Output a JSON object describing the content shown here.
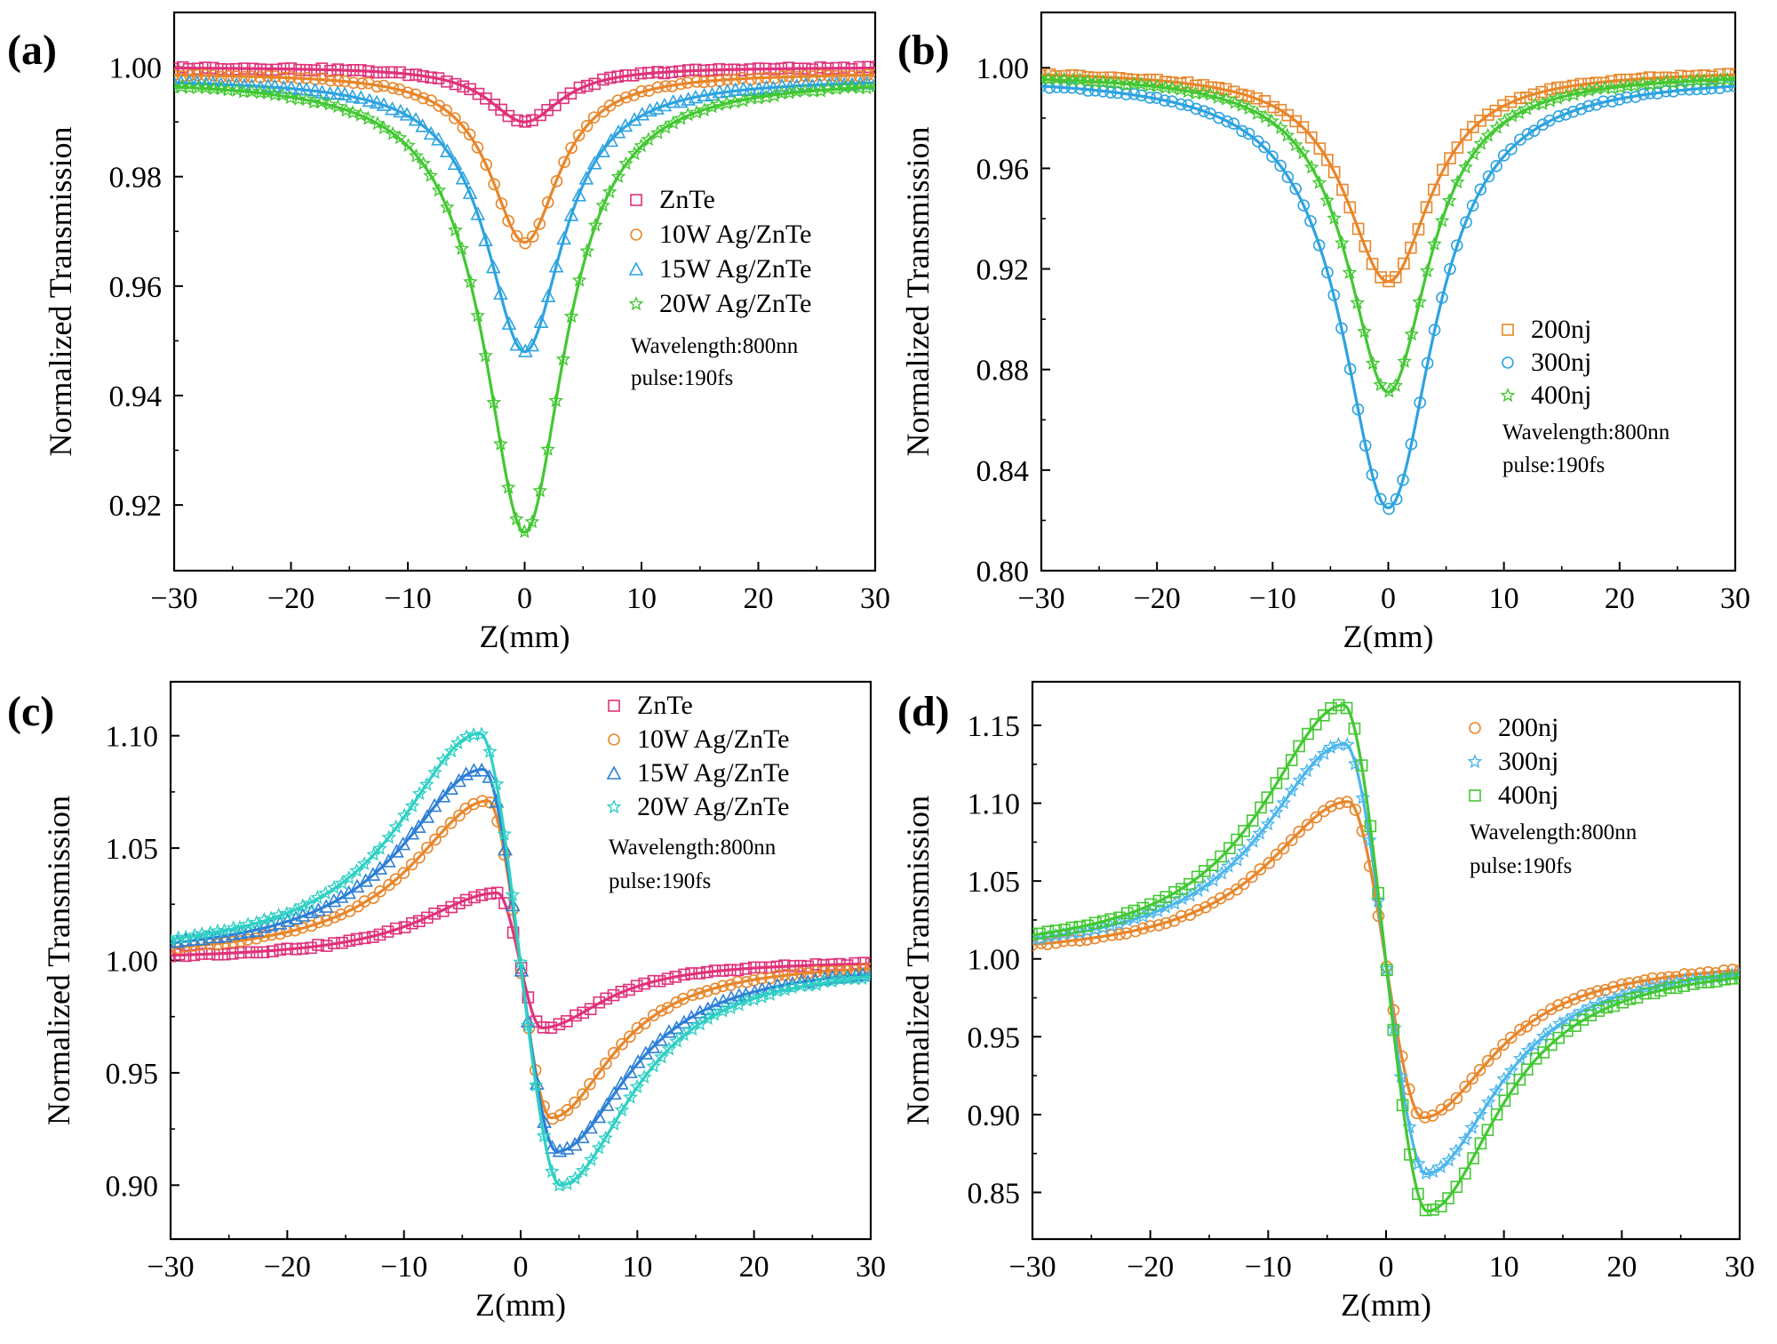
{
  "figure": {
    "panels": [
      {
        "letter": "(a)",
        "xlabel": "Z(mm)",
        "ylabel": "Normalized Transmission",
        "notes": [
          "Wavelength:800nn",
          "pulse:190fs"
        ]
      },
      {
        "letter": "(b)",
        "xlabel": "Z(mm)",
        "ylabel": "Normalized Transmission",
        "notes": [
          "Wavelength:800nn",
          "pulse:190fs"
        ]
      },
      {
        "letter": "(c)",
        "xlabel": "Z(mm)",
        "ylabel": "Normalized Transmission",
        "notes": [
          "Wavelength:800nn",
          "pulse:190fs"
        ]
      },
      {
        "letter": "(d)",
        "xlabel": "Z(mm)",
        "ylabel": "Normalized Transmission",
        "notes": [
          "Wavelength:800nn",
          "pulse:190fs"
        ]
      }
    ]
  },
  "chart_data": [
    {
      "panel": "(a)",
      "type": "line",
      "mode": "valley",
      "title": "",
      "xlabel": "Z(mm)",
      "ylabel": "Normalized Transmission",
      "xlim": [
        -30,
        30
      ],
      "ylim": [
        0.908,
        1.01
      ],
      "xticks": [
        "−30",
        "−20",
        "−10",
        "0",
        "10",
        "20",
        "30"
      ],
      "yticks": [
        0.92,
        0.94,
        0.96,
        0.98,
        1.0
      ],
      "ytick_labels": [
        "0.92",
        "0.94",
        "0.96",
        "0.98",
        "1.00"
      ],
      "legend": "right-center",
      "series": [
        {
          "name": "ZnTe",
          "color": "#e0317a",
          "marker": "square",
          "valley": 0.99,
          "width_mm": 3.8,
          "baseline": 1.0
        },
        {
          "name": "10W Ag/ZnTe",
          "color": "#e8862a",
          "marker": "circle",
          "valley": 0.968,
          "width_mm": 3.6,
          "baseline": 0.999
        },
        {
          "name": "15W Ag/ZnTe",
          "color": "#2da3e0",
          "marker": "triangle",
          "valley": 0.948,
          "width_mm": 4.0,
          "baseline": 0.998
        },
        {
          "name": "20W Ag/ZnTe",
          "color": "#42c832",
          "marker": "star",
          "valley": 0.915,
          "width_mm": 4.2,
          "baseline": 0.998
        }
      ]
    },
    {
      "panel": "(b)",
      "type": "line",
      "mode": "valley",
      "title": "",
      "xlabel": "Z(mm)",
      "ylabel": "Normalized Transmission",
      "xlim": [
        -30,
        30
      ],
      "ylim": [
        0.8,
        1.022
      ],
      "xticks": [
        "−30",
        "−20",
        "−10",
        "0",
        "10",
        "20",
        "30"
      ],
      "yticks": [
        0.8,
        0.84,
        0.88,
        0.92,
        0.96,
        1.0
      ],
      "ytick_labels": [
        "0.80",
        "0.84",
        "0.88",
        "0.92",
        "0.96",
        "1.00"
      ],
      "legend": "right-center",
      "series": [
        {
          "name": "200nj",
          "color": "#e8862a",
          "marker": "square",
          "valley": 0.915,
          "width_mm": 4.5,
          "baseline": 0.999
        },
        {
          "name": "300nj",
          "color": "#2da3e0",
          "marker": "circle",
          "valley": 0.825,
          "width_mm": 4.8,
          "baseline": 0.997
        },
        {
          "name": "400nj",
          "color": "#42c832",
          "marker": "star",
          "valley": 0.871,
          "width_mm": 4.3,
          "baseline": 0.998
        }
      ]
    },
    {
      "panel": "(c)",
      "type": "line",
      "mode": "peak-valley",
      "title": "",
      "xlabel": "Z(mm)",
      "ylabel": "Normalized Transmission",
      "xlim": [
        -30,
        30
      ],
      "ylim": [
        0.876,
        1.124
      ],
      "xticks": [
        "−30",
        "−20",
        "−10",
        "0",
        "10",
        "20",
        "30"
      ],
      "yticks": [
        0.9,
        0.95,
        1.0,
        1.05,
        1.1
      ],
      "ytick_labels": [
        "0.90",
        "0.95",
        "1.00",
        "1.05",
        "1.10"
      ],
      "legend": "top-right",
      "series": [
        {
          "name": "ZnTe",
          "color": "#e0317a",
          "marker": "square",
          "peak": 1.03,
          "valley": 0.97,
          "z_peak": -2.0,
          "z_valley": 1.8
        },
        {
          "name": "10W Ag/ZnTe",
          "color": "#e8862a",
          "marker": "circle",
          "peak": 1.071,
          "valley": 0.93,
          "z_peak": -2.8,
          "z_valley": 2.6
        },
        {
          "name": "15W Ag/ZnTe",
          "color": "#2d7fd6",
          "marker": "triangle",
          "peak": 1.085,
          "valley": 0.915,
          "z_peak": -3.2,
          "z_valley": 3.1
        },
        {
          "name": "20W Ag/ZnTe",
          "color": "#2ed0c4",
          "marker": "star",
          "peak": 1.101,
          "valley": 0.9,
          "z_peak": -3.5,
          "z_valley": 3.4
        }
      ]
    },
    {
      "panel": "(d)",
      "type": "line",
      "mode": "peak-valley",
      "title": "",
      "xlabel": "Z(mm)",
      "ylabel": "Normalized Transmission",
      "xlim": [
        -30,
        30
      ],
      "ylim": [
        0.82,
        1.178
      ],
      "xticks": [
        "−30",
        "−20",
        "−10",
        "0",
        "10",
        "20",
        "30"
      ],
      "yticks": [
        0.85,
        0.9,
        0.95,
        1.0,
        1.05,
        1.1,
        1.15
      ],
      "ytick_labels": [
        "0.85",
        "0.90",
        "0.95",
        "1.00",
        "1.05",
        "1.10",
        "1.15"
      ],
      "legend": "top-right",
      "series": [
        {
          "name": "200nj",
          "color": "#e8862a",
          "marker": "circle",
          "peak": 1.101,
          "valley": 0.898,
          "z_peak": -3.2,
          "z_valley": 3.1
        },
        {
          "name": "300nj",
          "color": "#4cb6ec",
          "marker": "star",
          "peak": 1.138,
          "valley": 0.862,
          "z_peak": -3.5,
          "z_valley": 3.4
        },
        {
          "name": "400nj",
          "color": "#42c832",
          "marker": "square",
          "peak": 1.163,
          "valley": 0.838,
          "z_peak": -3.6,
          "z_valley": 3.5
        }
      ]
    }
  ]
}
